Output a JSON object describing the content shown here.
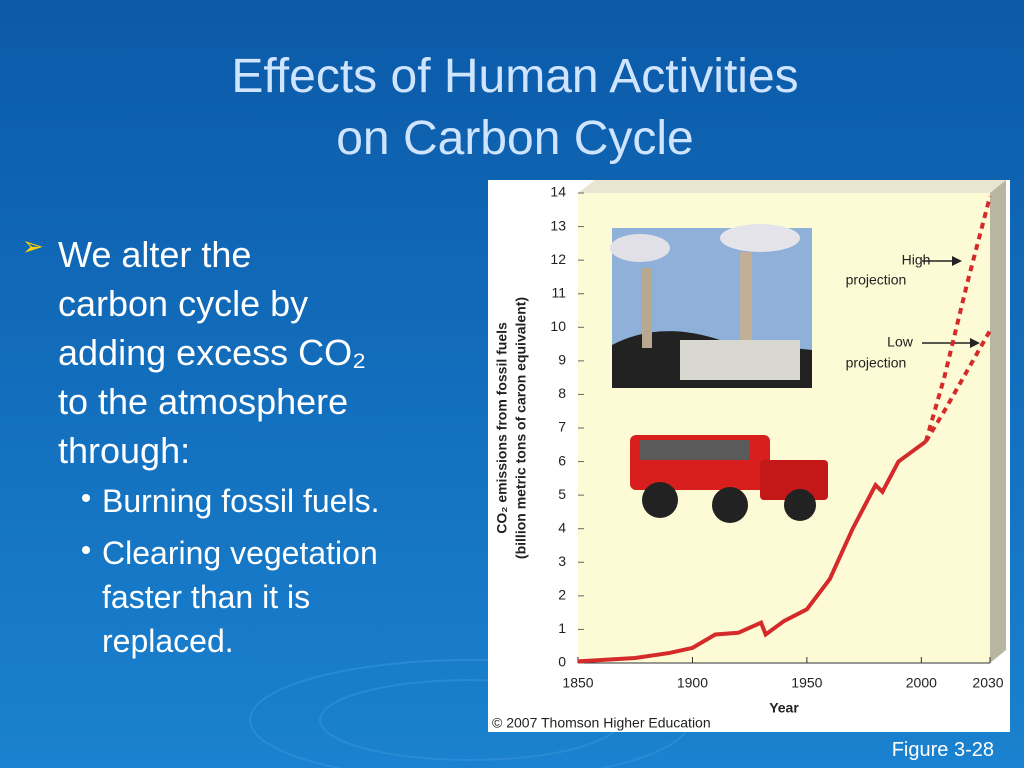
{
  "title": [
    "Effects of Human Activities",
    "on Carbon Cycle"
  ],
  "bullets": [
    {
      "lines": [
        "We alter the",
        "carbon cycle by",
        "adding excess CO₂",
        "to the atmosphere",
        "through:"
      ],
      "sub": [
        {
          "lines": [
            "Burning fossil fuels."
          ]
        },
        {
          "lines": [
            "Clearing vegetation",
            "faster than it is",
            "replaced."
          ]
        }
      ]
    }
  ],
  "figure_caption": "Figure 3-28",
  "chart_data": {
    "type": "line",
    "xlabel": "Year",
    "ylabel": [
      "CO₂ emissions from fossil fuels",
      "(billion metric tons of caron equivalent)"
    ],
    "annotations": [
      "High",
      "projection",
      "Low",
      "projection"
    ],
    "credit": "© 2007 Thomson Higher Education",
    "xlim": [
      1850,
      2030
    ],
    "xticks": [
      1850,
      1900,
      1950,
      2000,
      2030
    ],
    "ylim": [
      0,
      14
    ],
    "yticks": [
      0,
      1,
      2,
      3,
      4,
      5,
      6,
      7,
      8,
      9,
      10,
      11,
      12,
      13,
      14
    ],
    "series": [
      {
        "color": "#d42a2a",
        "dashed": false,
        "x": [
          1850,
          1875,
          1890,
          1900,
          1910,
          1920,
          1930,
          1932,
          1940,
          1950,
          1960,
          1970,
          1980,
          1983,
          1990,
          2002
        ],
        "values": [
          0.05,
          0.15,
          0.3,
          0.45,
          0.85,
          0.9,
          1.2,
          0.85,
          1.25,
          1.6,
          2.5,
          4.0,
          5.3,
          5.1,
          6.0,
          6.6
        ]
      },
      {
        "color": "#d42a2a",
        "dashed": true,
        "x": [
          2002,
          2010,
          2020,
          2030
        ],
        "values": [
          6.6,
          8.5,
          11.3,
          13.9
        ]
      },
      {
        "color": "#d42a2a",
        "dashed": true,
        "x": [
          2002,
          2010,
          2020,
          2030
        ],
        "values": [
          6.6,
          7.5,
          8.7,
          9.9
        ]
      }
    ]
  }
}
